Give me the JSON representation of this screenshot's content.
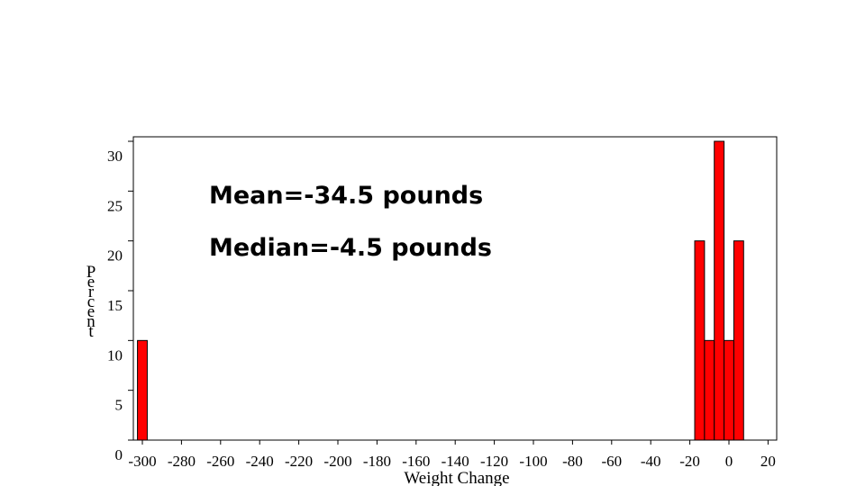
{
  "chart_data": {
    "type": "bar",
    "xlabel": "Weight Change",
    "ylabel": "Percent",
    "xlim": [
      -305,
      25
    ],
    "ylim": [
      0,
      30
    ],
    "bar_width": 5,
    "bar_color": "#ff0000",
    "bars": [
      {
        "x": -300,
        "value": 10
      },
      {
        "x": -15,
        "value": 20
      },
      {
        "x": -10,
        "value": 10
      },
      {
        "x": -5,
        "value": 30
      },
      {
        "x": 0,
        "value": 10
      },
      {
        "x": 5,
        "value": 20
      }
    ],
    "x_ticks": [
      -300,
      -280,
      -260,
      -240,
      -220,
      -200,
      -180,
      -160,
      -140,
      -120,
      -100,
      -80,
      -60,
      -40,
      -20,
      0,
      20
    ],
    "y_ticks": [
      0,
      5,
      10,
      15,
      20,
      25,
      30
    ],
    "annotations": [
      "Mean=-34.5 pounds",
      "Median=-4.5 pounds"
    ]
  }
}
